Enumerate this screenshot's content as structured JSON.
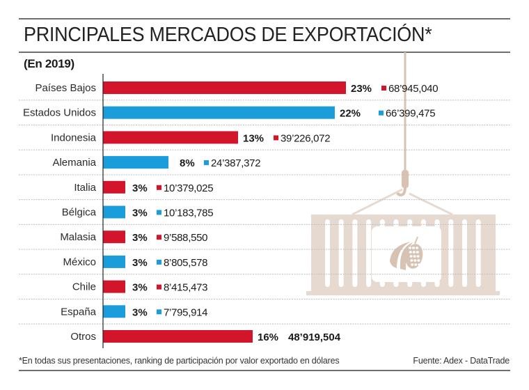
{
  "header": {
    "title": "PRINCIPALES MERCADOS DE EXPORTACIÓN*",
    "subtitle": "(En 2019)"
  },
  "footer": {
    "footnote": "*En todas sus presentaciones, ranking de participación por valor exportado en dólares",
    "source": "Fuente: Adex - DataTrade"
  },
  "colors": {
    "red": "#d2152b",
    "blue": "#1b9ddb",
    "illustration": "#e6dad0",
    "illustration_dark": "#d8c3b3",
    "rule": "#6e6e6e"
  },
  "illustration": {
    "icon": "container-with-cacao-icon"
  },
  "chart_data": {
    "type": "bar",
    "orientation": "horizontal",
    "title": "PRINCIPALES MERCADOS DE EXPORTACIÓN*",
    "subtitle": "(En 2019)",
    "xlabel": "",
    "ylabel": "",
    "grid": true,
    "categories": [
      "Países Bajos",
      "Estados Unidos",
      "Indonesia",
      "Alemania",
      "Italia",
      "Bélgica",
      "Malasia",
      "México",
      "Chile",
      "España",
      "Otros"
    ],
    "percent": [
      23,
      22,
      13,
      8,
      3,
      3,
      3,
      3,
      3,
      3,
      16
    ],
    "percent_labels": [
      "23%",
      "22%",
      "13%",
      "8%",
      "3%",
      "3%",
      "3%",
      "3%",
      "3%",
      "3%",
      "16%"
    ],
    "values": [
      68945040,
      66399475,
      39226072,
      24387372,
      10379025,
      10183785,
      9588550,
      8805578,
      8415473,
      7795914,
      48919504
    ],
    "value_labels": [
      "68’945,040",
      "66’399,475",
      "39’226,072",
      "24’387,372",
      "10’379,025",
      "10’183,785",
      "9’588,550",
      "8’805,578",
      "8’415,473",
      "7’795,914",
      "48’919,504"
    ],
    "bar_colors": [
      "red",
      "blue",
      "red",
      "blue",
      "red",
      "blue",
      "red",
      "blue",
      "red",
      "blue",
      "red"
    ],
    "value_unit": "USD"
  }
}
